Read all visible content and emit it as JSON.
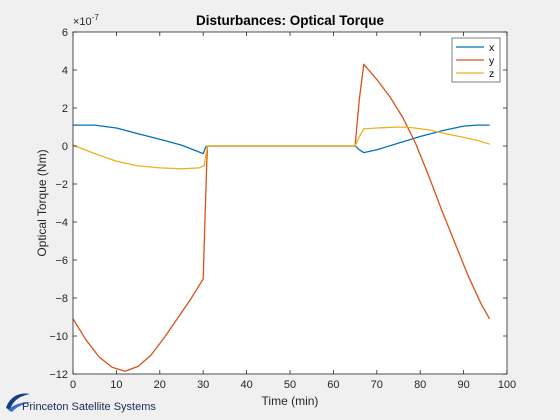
{
  "colors": {
    "background": "#f0f0f0",
    "axes_background": "#ffffff",
    "x": "#0072bd",
    "y": "#d95319",
    "z": "#edb120",
    "logo": "#1a3a8a"
  },
  "branding": {
    "text": "Princeton Satellite Systems",
    "logo_icon": "swoosh-logo-icon"
  },
  "chart_data": {
    "type": "line",
    "title": "Disturbances: Optical Torque",
    "xlabel": "Time (min)",
    "ylabel": "Optical Torque (Nm)",
    "y_exponent_label": "×10",
    "y_exponent_value": "-7",
    "y_scale_note": "values in units of 1e-7 Nm",
    "xlim": [
      0,
      100
    ],
    "ylim": [
      -12,
      6
    ],
    "xticks": [
      0,
      10,
      20,
      30,
      40,
      50,
      60,
      70,
      80,
      90,
      100
    ],
    "yticks": [
      -12,
      -10,
      -8,
      -6,
      -4,
      -2,
      0,
      2,
      4,
      6
    ],
    "grid": false,
    "legend_position": "top-right",
    "series": [
      {
        "name": "x",
        "color": "#0072bd",
        "points": [
          [
            0,
            1.1
          ],
          [
            5,
            1.1
          ],
          [
            10,
            0.95
          ],
          [
            15,
            0.65
          ],
          [
            20,
            0.35
          ],
          [
            25,
            0.05
          ],
          [
            30,
            -0.4
          ],
          [
            30.6,
            -0.05
          ],
          [
            31,
            0
          ],
          [
            60,
            0
          ],
          [
            65,
            0
          ],
          [
            66,
            -0.2
          ],
          [
            67,
            -0.35
          ],
          [
            70,
            -0.2
          ],
          [
            75,
            0.15
          ],
          [
            80,
            0.5
          ],
          [
            85,
            0.8
          ],
          [
            90,
            1.05
          ],
          [
            93,
            1.1
          ],
          [
            96,
            1.1
          ]
        ]
      },
      {
        "name": "y",
        "color": "#d95319",
        "points": [
          [
            0,
            -9.1
          ],
          [
            3,
            -10.2
          ],
          [
            6,
            -11.1
          ],
          [
            9,
            -11.65
          ],
          [
            12,
            -11.85
          ],
          [
            15,
            -11.6
          ],
          [
            18,
            -11.0
          ],
          [
            21,
            -10.1
          ],
          [
            24,
            -9.1
          ],
          [
            27,
            -8.1
          ],
          [
            30,
            -7.0
          ],
          [
            30.4,
            -4.0
          ],
          [
            30.8,
            -1.0
          ],
          [
            31,
            0
          ],
          [
            60,
            0
          ],
          [
            65,
            0
          ],
          [
            66,
            2.5
          ],
          [
            67,
            4.3
          ],
          [
            70,
            3.5
          ],
          [
            73,
            2.6
          ],
          [
            76,
            1.5
          ],
          [
            79,
            0.1
          ],
          [
            82,
            -1.6
          ],
          [
            85,
            -3.4
          ],
          [
            88,
            -5.1
          ],
          [
            91,
            -6.8
          ],
          [
            94,
            -8.3
          ],
          [
            96,
            -9.1
          ]
        ]
      },
      {
        "name": "z",
        "color": "#edb120",
        "points": [
          [
            0,
            0.05
          ],
          [
            5,
            -0.4
          ],
          [
            10,
            -0.8
          ],
          [
            15,
            -1.05
          ],
          [
            20,
            -1.15
          ],
          [
            25,
            -1.2
          ],
          [
            29,
            -1.15
          ],
          [
            30.2,
            -1.05
          ],
          [
            30.6,
            -0.5
          ],
          [
            31,
            0
          ],
          [
            60,
            0
          ],
          [
            65,
            0
          ],
          [
            66,
            0.5
          ],
          [
            67,
            0.9
          ],
          [
            70,
            0.95
          ],
          [
            75,
            1.0
          ],
          [
            78,
            0.97
          ],
          [
            82,
            0.85
          ],
          [
            86,
            0.65
          ],
          [
            90,
            0.45
          ],
          [
            93,
            0.3
          ],
          [
            96,
            0.1
          ]
        ]
      }
    ]
  }
}
